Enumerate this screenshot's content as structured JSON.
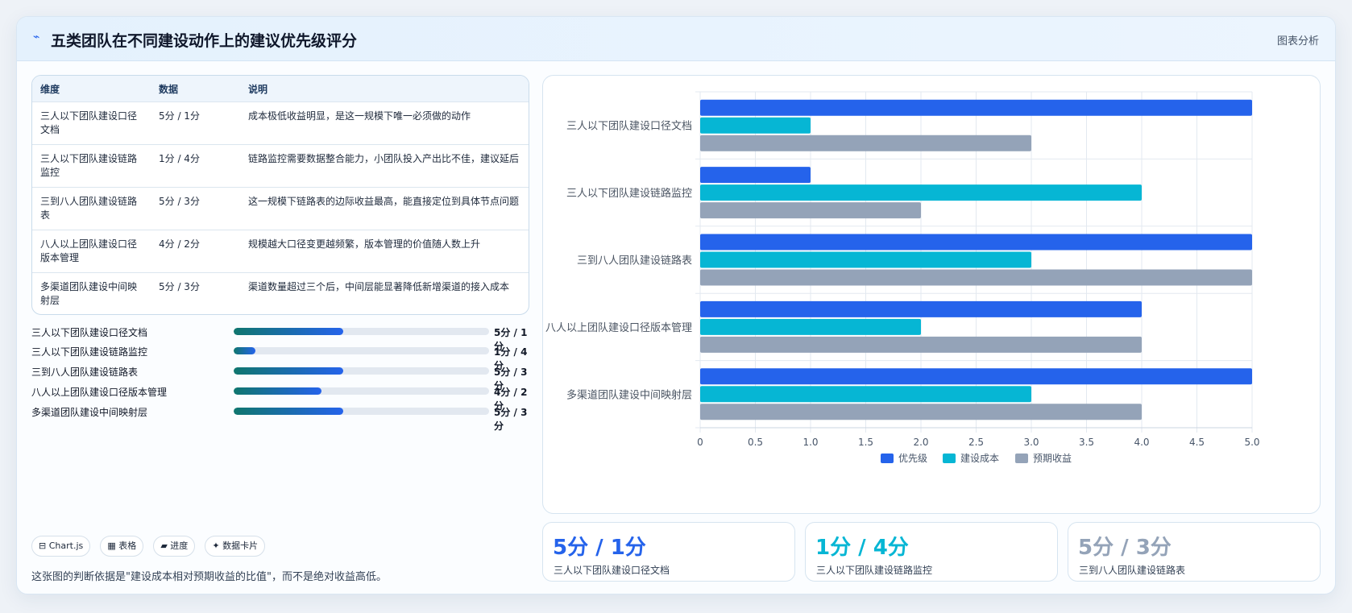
{
  "header": {
    "logo_icon": "chart-line-icon",
    "title": "五类团队在不同建设动作上的建议优先级评分",
    "tag": "图表分析"
  },
  "table": {
    "columns": [
      "维度",
      "数据",
      "说明"
    ],
    "rows": [
      {
        "dim": "三人以下团队建设口径文档",
        "value": "5分 / 1分",
        "desc": "成本极低收益明显，是这一规模下唯一必须做的动作"
      },
      {
        "dim": "三人以下团队建设链路监控",
        "value": "1分 / 4分",
        "desc": "链路监控需要数据整合能力，小团队投入产出比不佳，建议延后"
      },
      {
        "dim": "三到八人团队建设链路表",
        "value": "5分 / 3分",
        "desc": "这一规模下链路表的边际收益最高，能直接定位到具体节点问题"
      },
      {
        "dim": "八人以上团队建设口径版本管理",
        "value": "4分 / 2分",
        "desc": "规模越大口径变更越频繁，版本管理的价值随人数上升"
      },
      {
        "dim": "多渠道团队建设中间映射层",
        "value": "5分 / 3分",
        "desc": "渠道数量超过三个后，中间层能显著降低新增渠道的接入成本"
      }
    ]
  },
  "progress": [
    {
      "label": "三人以下团队建设口径文档",
      "value": "5分 / 1分",
      "fraction": 0.43
    },
    {
      "label": "三人以下团队建设链路监控",
      "value": "1分 / 4分",
      "fraction": 0.085
    },
    {
      "label": "三到八人团队建设链路表",
      "value": "5分 / 3分",
      "fraction": 0.43
    },
    {
      "label": "八人以上团队建设口径版本管理",
      "value": "4分 / 2分",
      "fraction": 0.345
    },
    {
      "label": "多渠道团队建设中间映射层",
      "value": "5分 / 3分",
      "fraction": 0.43
    }
  ],
  "chips": [
    {
      "icon": "table-icon",
      "glyph": "⊟",
      "label": "Chart.js"
    },
    {
      "icon": "grid-icon",
      "glyph": "▦",
      "label": "表格"
    },
    {
      "icon": "folder-icon",
      "glyph": "▰",
      "label": "进度"
    },
    {
      "icon": "sparkle-icon",
      "glyph": "✦",
      "label": "数据卡片"
    }
  ],
  "note": "这张图的判断依据是\"建设成本相对预期收益的比值\"，而不是绝对收益高低。",
  "kpis": [
    {
      "value": "5分 / 1分",
      "label": "三人以下团队建设口径文档",
      "color": "#2563eb"
    },
    {
      "value": "1分 / 4分",
      "label": "三人以下团队建设链路监控",
      "color": "#06b6d4"
    },
    {
      "value": "5分 / 3分",
      "label": "三到八人团队建设链路表",
      "color": "#94a3b8"
    }
  ],
  "chart_data": {
    "type": "bar",
    "orientation": "horizontal",
    "categories": [
      "三人以下团队建设口径文档",
      "三人以下团队建设链路监控",
      "三到八人团队建设链路表",
      "八人以上团队建设口径版本管理",
      "多渠道团队建设中间映射层"
    ],
    "series": [
      {
        "name": "优先级",
        "color": "#2563eb",
        "values": [
          5,
          1,
          5,
          4,
          5
        ]
      },
      {
        "name": "建设成本",
        "color": "#06b6d4",
        "values": [
          1,
          4,
          3,
          2,
          3
        ]
      },
      {
        "name": "预期收益",
        "color": "#94a3b8",
        "values": [
          3,
          2,
          5,
          4,
          4
        ]
      }
    ],
    "xlim": [
      0,
      5
    ],
    "xticks": [
      "0",
      "0.5",
      "1.0",
      "1.5",
      "2.0",
      "2.5",
      "3.0",
      "3.5",
      "4.0",
      "4.5",
      "5.0"
    ],
    "grid": true,
    "legend": "bottom"
  }
}
